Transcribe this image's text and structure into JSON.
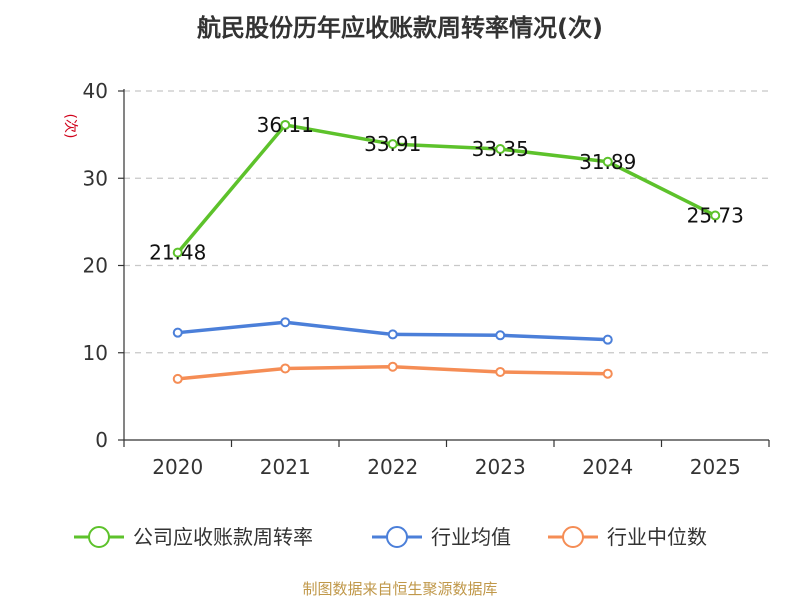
{
  "title": "航民股份历年应收账款周转率情况(次)",
  "source": "制图数据来自恒生聚源数据库",
  "chart_data": {
    "type": "line",
    "title": "航民股份历年应收账款周转率情况(次)",
    "ylabel": "(次)",
    "categories": [
      "2020",
      "2021",
      "2022",
      "2023",
      "2024",
      "2025"
    ],
    "ylim": [
      0,
      40
    ],
    "yticks": [
      0,
      10,
      20,
      30,
      40
    ],
    "grid": true,
    "legend_position": "bottom",
    "series": [
      {
        "name": "公司应收账款周转率",
        "color": "#5dc22b",
        "values": [
          21.48,
          36.11,
          33.91,
          33.35,
          31.89,
          25.73
        ],
        "labels": [
          "21.48",
          "36.11",
          "33.91",
          "33.35",
          "31.89",
          "25.73"
        ],
        "show_labels": true
      },
      {
        "name": "行业均值",
        "color": "#4b7fd9",
        "values": [
          12.3,
          13.5,
          12.1,
          12.0,
          11.5,
          null
        ],
        "show_labels": false
      },
      {
        "name": "行业中位数",
        "color": "#f58d55",
        "values": [
          7.0,
          8.2,
          8.4,
          7.8,
          7.6,
          null
        ],
        "show_labels": false
      }
    ]
  }
}
